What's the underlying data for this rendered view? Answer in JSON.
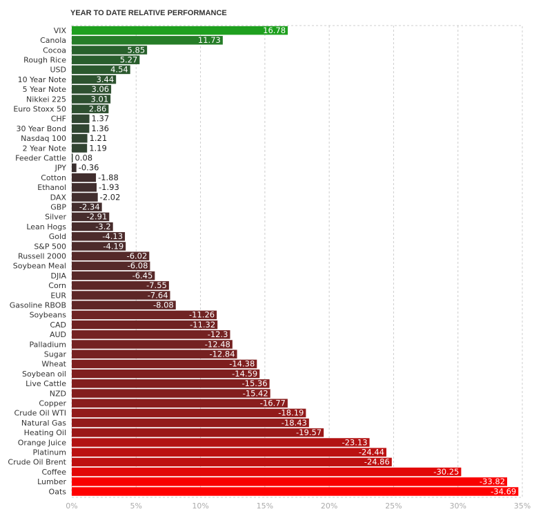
{
  "chart_data": {
    "type": "bar",
    "orientation": "horizontal",
    "title": "YEAR TO DATE RELATIVE PERFORMANCE",
    "x_tick_labels": [
      "0%",
      "5%",
      "10%",
      "15%",
      "20%",
      "25%",
      "30%",
      "35%"
    ],
    "xlim": [
      0,
      35
    ],
    "grid": true,
    "colors": {
      "positive_strong": "#1fa01f",
      "positive_dark": "#2c5230",
      "near_zero": "#3a2f2f",
      "negative_mid": "#8c1c1c",
      "negative_strong": "#ff0000"
    },
    "categories": [
      "VIX",
      "Canola",
      "Cocoa",
      "Rough Rice",
      "USD",
      "10 Year Note",
      "5 Year Note",
      "Nikkei 225",
      "Euro Stoxx 50",
      "CHF",
      "30 Year Bond",
      "Nasdaq 100",
      "2 Year Note",
      "Feeder Cattle",
      "JPY",
      "Cotton",
      "Ethanol",
      "DAX",
      "GBP",
      "Silver",
      "Lean Hogs",
      "Gold",
      "S&P 500",
      "Russell 2000",
      "Soybean Meal",
      "DJIA",
      "Corn",
      "EUR",
      "Gasoline RBOB",
      "Soybeans",
      "CAD",
      "AUD",
      "Palladium",
      "Sugar",
      "Wheat",
      "Soybean oil",
      "Live Cattle",
      "NZD",
      "Copper",
      "Crude Oil WTI",
      "Natural Gas",
      "Heating Oil",
      "Orange Juice",
      "Platinum",
      "Crude Oil Brent",
      "Coffee",
      "Lumber",
      "Oats"
    ],
    "values": [
      16.78,
      11.73,
      5.85,
      5.27,
      4.54,
      3.44,
      3.06,
      3.01,
      2.86,
      1.37,
      1.36,
      1.21,
      1.19,
      0.08,
      -0.36,
      -1.88,
      -1.93,
      -2.02,
      -2.34,
      -2.91,
      -3.2,
      -4.13,
      -4.19,
      -6.02,
      -6.08,
      -6.45,
      -7.55,
      -7.64,
      -8.08,
      -11.26,
      -11.32,
      -12.3,
      -12.48,
      -12.84,
      -14.38,
      -14.59,
      -15.36,
      -15.42,
      -16.77,
      -18.19,
      -18.43,
      -19.57,
      -23.13,
      -24.44,
      -24.86,
      -30.25,
      -33.82,
      -34.69
    ],
    "value_labels": [
      "16.78",
      "11.73",
      "5.85",
      "5.27",
      "4.54",
      "3.44",
      "3.06",
      "3.01",
      "2.86",
      "1.37",
      "1.36",
      "1.21",
      "1.19",
      "0.08",
      "-0.36",
      "-1.88",
      "-1.93",
      "-2.02",
      "-2.34",
      "-2.91",
      "-3.2",
      "-4.13",
      "-4.19",
      "-6.02",
      "-6.08",
      "-6.45",
      "-7.55",
      "-7.64",
      "-8.08",
      "-11.26",
      "-11.32",
      "-12.3",
      "-12.48",
      "-12.84",
      "-14.38",
      "-14.59",
      "-15.36",
      "-15.42",
      "-16.77",
      "-18.19",
      "-18.43",
      "-19.57",
      "-23.13",
      "-24.44",
      "-24.86",
      "-30.25",
      "-33.82",
      "-34.69"
    ]
  }
}
